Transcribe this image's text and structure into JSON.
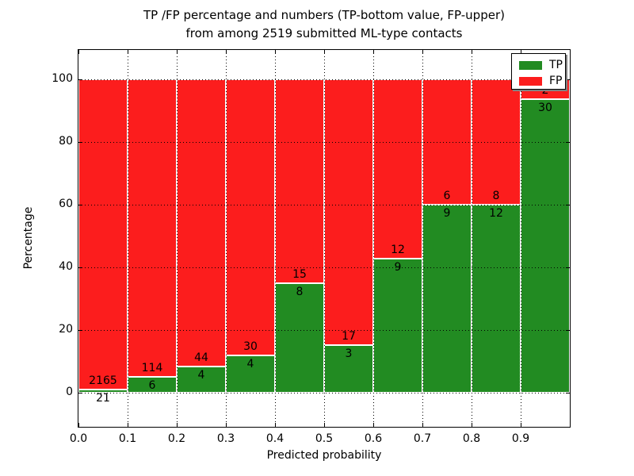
{
  "title": {
    "line1": "TP /FP percentage and numbers (TP-bottom value, FP-upper)",
    "line2": "from among 2519 submitted ML-type contacts"
  },
  "axes": {
    "xlabel": "Predicted probability",
    "ylabel": "Percentage",
    "x_tick_values": [
      0.0,
      0.1,
      0.2,
      0.3,
      0.4,
      0.5,
      0.6,
      0.7,
      0.8,
      0.9
    ],
    "x_tick_labels": [
      "0.0",
      "0.1",
      "0.2",
      "0.3",
      "0.4",
      "0.5",
      "0.6",
      "0.7",
      "0.8",
      "0.9"
    ],
    "y_tick_values": [
      0,
      20,
      40,
      60,
      80,
      100
    ],
    "y_tick_labels": [
      "0",
      "20",
      "40",
      "60",
      "80",
      "100"
    ]
  },
  "legend": {
    "position": "upper-right",
    "items": [
      {
        "label": "TP",
        "color": "#228b22"
      },
      {
        "label": "FP",
        "color": "#fc1d1d"
      }
    ]
  },
  "chart_data": {
    "type": "bar",
    "variant": "stacked-100-percent",
    "title": "TP /FP percentage and numbers (TP-bottom value, FP-upper) from among 2519 submitted ML-type contacts",
    "xlabel": "Predicted probability",
    "ylabel": "Percentage",
    "total_contacts": 2519,
    "bin_edges": [
      0.0,
      0.1,
      0.2,
      0.3,
      0.4,
      0.5,
      0.6,
      0.7,
      0.8,
      0.9,
      1.0
    ],
    "series": [
      {
        "name": "TP",
        "color": "#228b22",
        "counts": [
          21,
          6,
          4,
          4,
          8,
          3,
          9,
          9,
          12,
          30
        ]
      },
      {
        "name": "FP",
        "color": "#fc1d1d",
        "counts": [
          2165,
          114,
          44,
          30,
          15,
          17,
          12,
          6,
          8,
          2
        ]
      }
    ],
    "tp_percent": [
      0.96,
      5.0,
      8.33,
      11.76,
      34.78,
      15.0,
      42.86,
      60.0,
      60.0,
      93.75
    ],
    "xlim": [
      0,
      1
    ],
    "ylim": [
      -11,
      109.4
    ],
    "grid": "dotted-black-on-major-ticks",
    "bar_edge_color": "#ffffff",
    "annotation_rule": "FP count above TP/FP boundary, TP count below boundary"
  }
}
